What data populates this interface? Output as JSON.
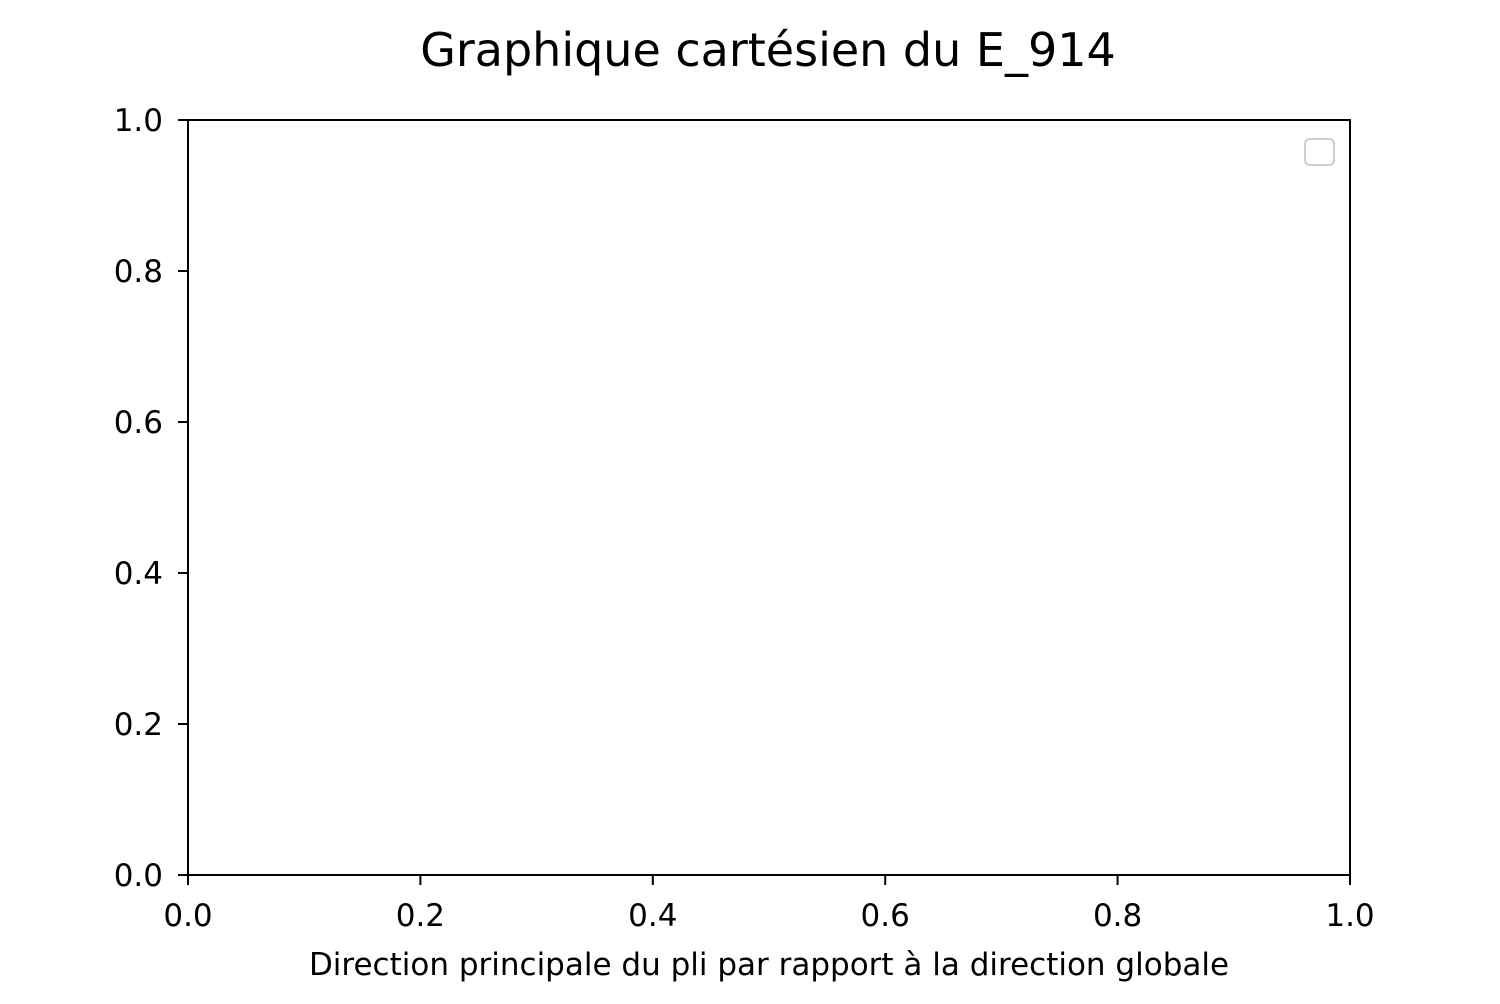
{
  "chart_data": {
    "type": "scatter",
    "title": "Graphique cartésien du E_914",
    "xlabel": "Direction principale du pli par rapport à la direction globale",
    "ylabel": "",
    "xlim": [
      0.0,
      1.0
    ],
    "ylim": [
      0.0,
      1.0
    ],
    "x_ticks": [
      "0.0",
      "0.2",
      "0.4",
      "0.6",
      "0.8",
      "1.0"
    ],
    "y_ticks": [
      "0.0",
      "0.2",
      "0.4",
      "0.6",
      "0.8",
      "1.0"
    ],
    "grid": false,
    "legend": {
      "placement": "top-right",
      "entries": []
    },
    "series": []
  }
}
